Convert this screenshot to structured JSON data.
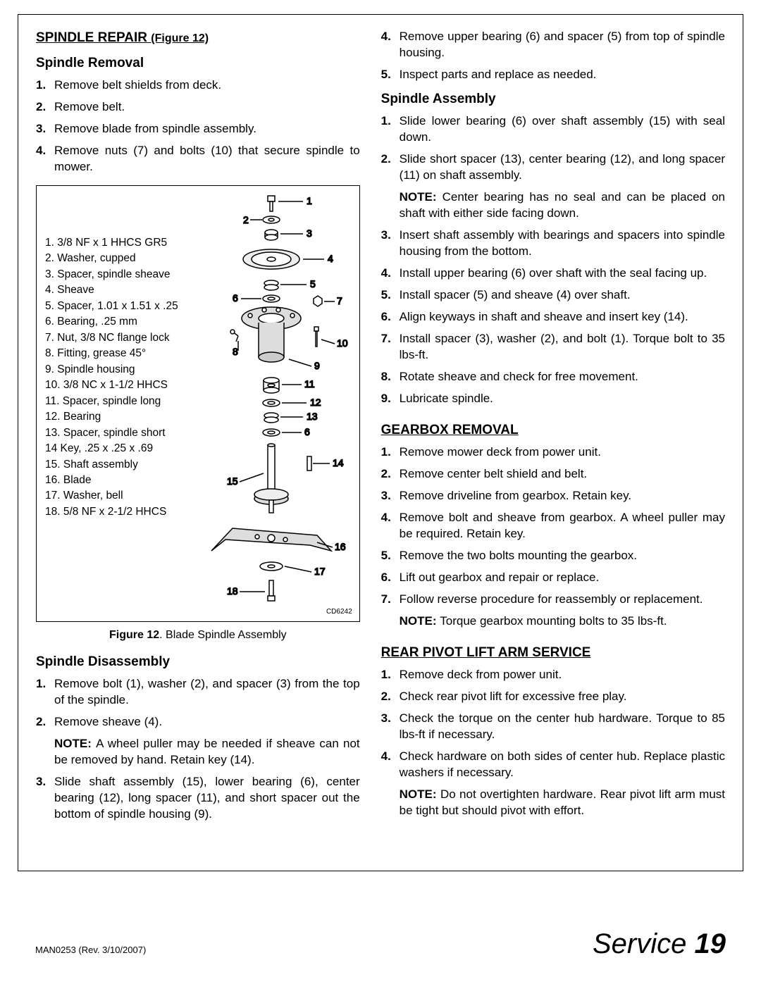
{
  "headings": {
    "spindle_repair": "SPINDLE REPAIR",
    "spindle_repair_fig": "(Figure 12)",
    "spindle_removal": "Spindle Removal",
    "spindle_disassembly": "Spindle Disassembly",
    "spindle_assembly": "Spindle Assembly",
    "gearbox_removal": "GEARBOX REMOVAL",
    "rear_pivot": "REAR PIVOT LIFT ARM SERVICE"
  },
  "removal_steps": [
    "Remove belt shields from deck.",
    "Remove belt.",
    "Remove blade from spindle assembly.",
    "Remove nuts (7) and bolts (10) that secure spindle to mower."
  ],
  "parts": [
    "3/8 NF x 1 HHCS GR5",
    "Washer, cupped",
    "Spacer, spindle sheave",
    "Sheave",
    "Spacer, 1.01 x 1.51 x .25",
    "Bearing, .25 mm",
    "Nut, 3/8 NC flange lock",
    "Fitting, grease 45°",
    "Spindle housing",
    "3/8 NC x 1-1/2 HHCS",
    "Spacer, spindle long",
    "Bearing",
    "Spacer, spindle short",
    "Key, .25 x .25 x .69",
    "Shaft assembly",
    "Blade",
    "Washer, bell",
    "5/8 NF x 2-1/2 HHCS"
  ],
  "figure_caption_bold": "Figure 12",
  "figure_caption_rest": ". Blade Spindle Assembly",
  "diagram_ref": "CD6242",
  "disassembly_steps": [
    "Remove bolt (1), washer (2), and spacer (3) from the top of the spindle.",
    "Remove sheave (4)."
  ],
  "disassembly_note": "A wheel puller may be needed if sheave can not be removed by hand. Retain key (14).",
  "disassembly_step3": "Slide shaft assembly (15), lower bearing (6), center bearing (12), long spacer (11), and short spacer out the bottom of spindle housing (9).",
  "right_top_steps": [
    "Remove upper bearing (6) and spacer (5) from top of spindle housing.",
    "Inspect parts and replace as needed."
  ],
  "assembly_steps": [
    "Slide lower bearing (6) over shaft assembly (15) with seal down.",
    "Slide short spacer (13), center bearing (12), and long spacer (11) on shaft assembly."
  ],
  "assembly_note1": "Center bearing has no seal and can be placed on shaft with either side facing down.",
  "assembly_steps2": [
    "Insert shaft assembly with bearings and spacers into spindle housing from the bottom.",
    "Install upper bearing (6) over shaft with the seal facing up.",
    "Install spacer (5) and sheave (4) over shaft.",
    "Align keyways in shaft and sheave and insert key (14).",
    "Install spacer (3), washer (2), and bolt (1). Torque bolt to 35 lbs-ft.",
    "Rotate sheave and check for free movement.",
    "Lubricate spindle."
  ],
  "gearbox_steps": [
    "Remove mower deck from power unit.",
    "Remove center belt shield and belt.",
    "Remove driveline from gearbox. Retain key.",
    "Remove bolt and sheave from gearbox. A wheel puller may be required. Retain key.",
    "Remove the two bolts mounting the gearbox.",
    "Lift out gearbox and repair or replace.",
    "Follow reverse procedure for reassembly or replacement."
  ],
  "gearbox_note": "Torque gearbox mounting bolts to 35 lbs-ft.",
  "rear_pivot_steps": [
    "Remove deck from power unit.",
    "Check rear pivot lift for excessive free play.",
    "Check the torque on the center hub hardware. Torque to 85 lbs-ft if necessary.",
    "Check hardware on both sides of center hub. Replace plastic washers if necessary."
  ],
  "rear_pivot_note": "Do not overtighten hardware. Rear pivot lift arm must be tight but should pivot with effort.",
  "note_label": "NOTE:",
  "footer": {
    "left": "MAN0253 (Rev. 3/10/2007)",
    "section": "Service",
    "page": "19"
  },
  "callouts": [
    "1",
    "2",
    "3",
    "4",
    "5",
    "6",
    "7",
    "8",
    "9",
    "10",
    "11",
    "12",
    "13",
    "6",
    "14",
    "15",
    "16",
    "17",
    "18"
  ],
  "colors": {
    "line": "#000000",
    "bg": "#ffffff"
  }
}
